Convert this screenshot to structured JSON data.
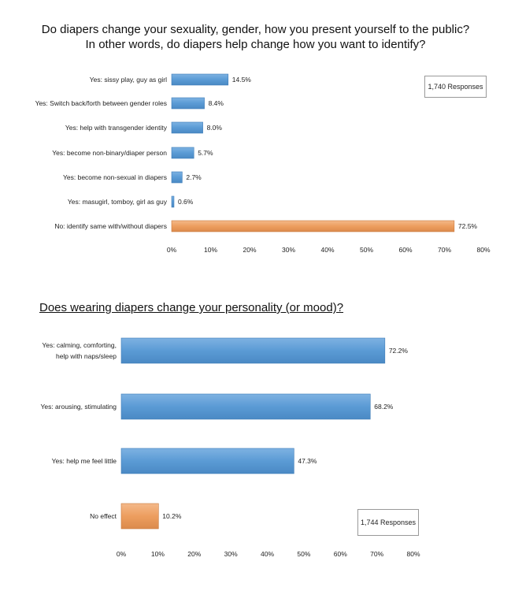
{
  "chart_data": [
    {
      "type": "bar",
      "orientation": "horizontal",
      "title_line1": "Do diapers change your sexuality, gender, how you present yourself to the public?",
      "title_line2": "In other words, do diapers help change how you want to identify?",
      "responses": "1,740 Responses",
      "categories": [
        "Yes: sissy play, guy as girl",
        "Yes: Switch back/forth between gender roles",
        "Yes: help with transgender identity",
        "Yes: become non-binary/diaper person",
        "Yes: become non-sexual in diapers",
        "Yes: masugirl, tomboy, girl as guy",
        "No: identify same with/without diapers"
      ],
      "values": [
        14.5,
        8.4,
        8.0,
        5.7,
        2.7,
        0.6,
        72.5
      ],
      "value_labels": [
        "14.5%",
        "8.4%",
        "8.0%",
        "5.7%",
        "2.7%",
        "0.6%",
        "72.5%"
      ],
      "bar_colors": [
        "#5b9bd5",
        "#5b9bd5",
        "#5b9bd5",
        "#5b9bd5",
        "#5b9bd5",
        "#5b9bd5",
        "#ed9e5f"
      ],
      "xlim": [
        0,
        80
      ],
      "xticks": [
        "0%",
        "10%",
        "20%",
        "30%",
        "40%",
        "50%",
        "60%",
        "70%",
        "80%"
      ],
      "grid": false
    },
    {
      "type": "bar",
      "orientation": "horizontal",
      "title": "Does wearing diapers change your personality (or mood)?",
      "responses": "1,744 Responses",
      "categories": [
        [
          "Yes: calming, comforting,",
          "help with naps/sleep"
        ],
        [
          "Yes: arousing, stimulating"
        ],
        [
          "Yes: help me feel little"
        ],
        [
          "No effect"
        ]
      ],
      "values": [
        72.2,
        68.2,
        47.3,
        10.2
      ],
      "value_labels": [
        "72.2%",
        "68.2%",
        "47.3%",
        "10.2%"
      ],
      "bar_colors": [
        "#5b9bd5",
        "#5b9bd5",
        "#5b9bd5",
        "#ed9e5f"
      ],
      "xlim": [
        0,
        80
      ],
      "xticks": [
        "0%",
        "10%",
        "20%",
        "30%",
        "40%",
        "50%",
        "60%",
        "70%",
        "80%"
      ],
      "grid": false
    }
  ]
}
